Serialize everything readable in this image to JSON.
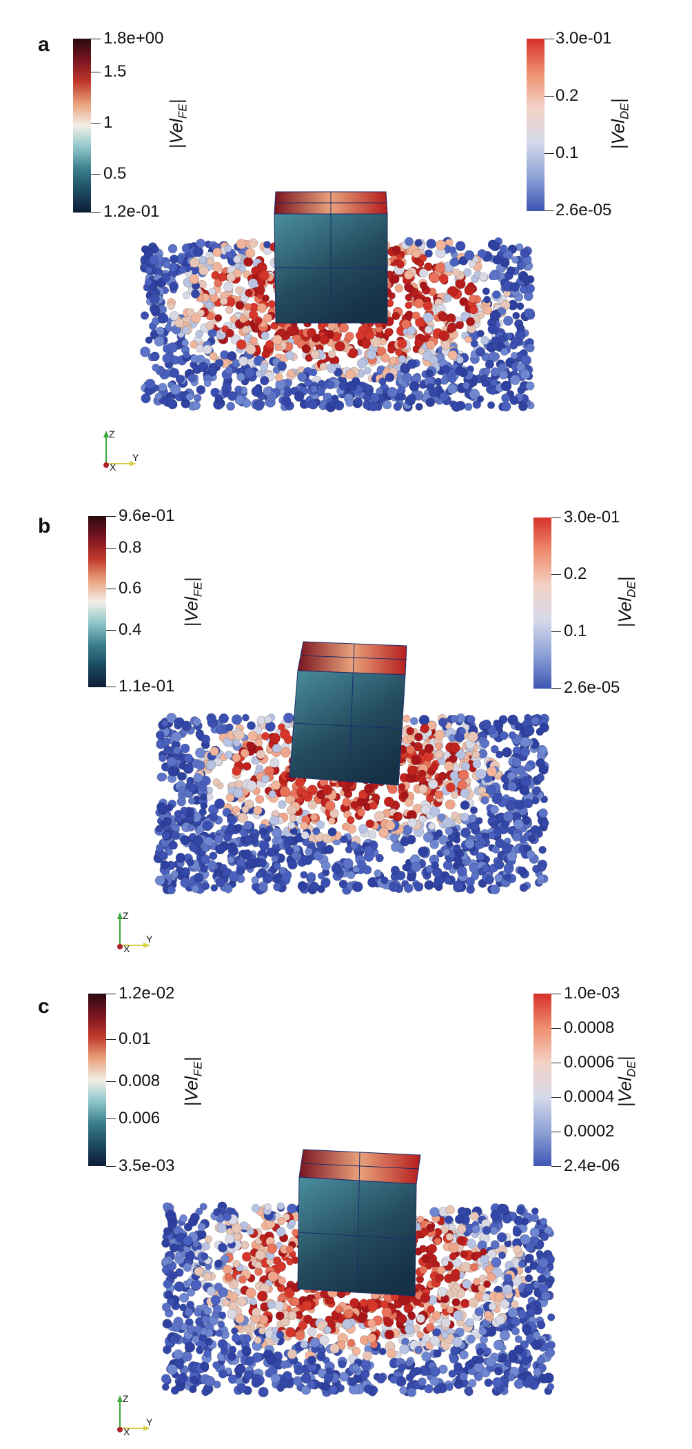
{
  "panels": [
    {
      "label": "a",
      "fe": {
        "ticks": [
          "1.8e+00",
          "1.5",
          "1",
          "0.5",
          "1.2e-01"
        ],
        "title_main": "|Vel",
        "title_sub": "FE",
        "title_end": "|"
      },
      "de": {
        "ticks": [
          "3.0e-01",
          "0.2",
          "0.1",
          "2.6e-05"
        ],
        "title_main": "|Vel",
        "title_sub": "DE",
        "title_end": "|"
      },
      "axes": {
        "z": "Z",
        "y": "Y",
        "x": "X"
      }
    },
    {
      "label": "b",
      "fe": {
        "ticks": [
          "9.6e-01",
          "0.8",
          "0.6",
          "0.4",
          "1.1e-01"
        ],
        "title_main": "|Vel",
        "title_sub": "FE",
        "title_end": "|"
      },
      "de": {
        "ticks": [
          "3.0e-01",
          "0.2",
          "0.1",
          "2.6e-05"
        ],
        "title_main": "|Vel",
        "title_sub": "DE",
        "title_end": "|"
      },
      "axes": {
        "z": "Z",
        "y": "Y",
        "x": "X"
      }
    },
    {
      "label": "c",
      "fe": {
        "ticks": [
          "1.2e-02",
          "0.01",
          "0.008",
          "0.006",
          "3.5e-03"
        ],
        "title_main": "|Vel",
        "title_sub": "FE",
        "title_end": "|"
      },
      "de": {
        "ticks": [
          "1.0e-03",
          "0.0008",
          "0.0006",
          "0.0004",
          "0.0002",
          "2.4e-06"
        ],
        "title_main": "|Vel",
        "title_sub": "DE",
        "title_end": "|"
      },
      "axes": {
        "z": "Z",
        "y": "Y",
        "x": "X"
      }
    }
  ],
  "colors": {
    "fe_gradient": [
      "#2a0a10",
      "#7a1420",
      "#c0392b",
      "#e9a27b",
      "#f2efe7",
      "#8fc6c9",
      "#3a7f8e",
      "#1c4a62",
      "#0d1d36"
    ],
    "de_gradient": [
      "#d6312b",
      "#ef8e6f",
      "#f3d2c5",
      "#d5d9ea",
      "#8ea2d6",
      "#3d55b3"
    ],
    "particle_blue": "#3b4fb0",
    "particle_red": "#c0221e",
    "cube_dark": "#163246",
    "cube_teal": "#4a8fa0"
  }
}
